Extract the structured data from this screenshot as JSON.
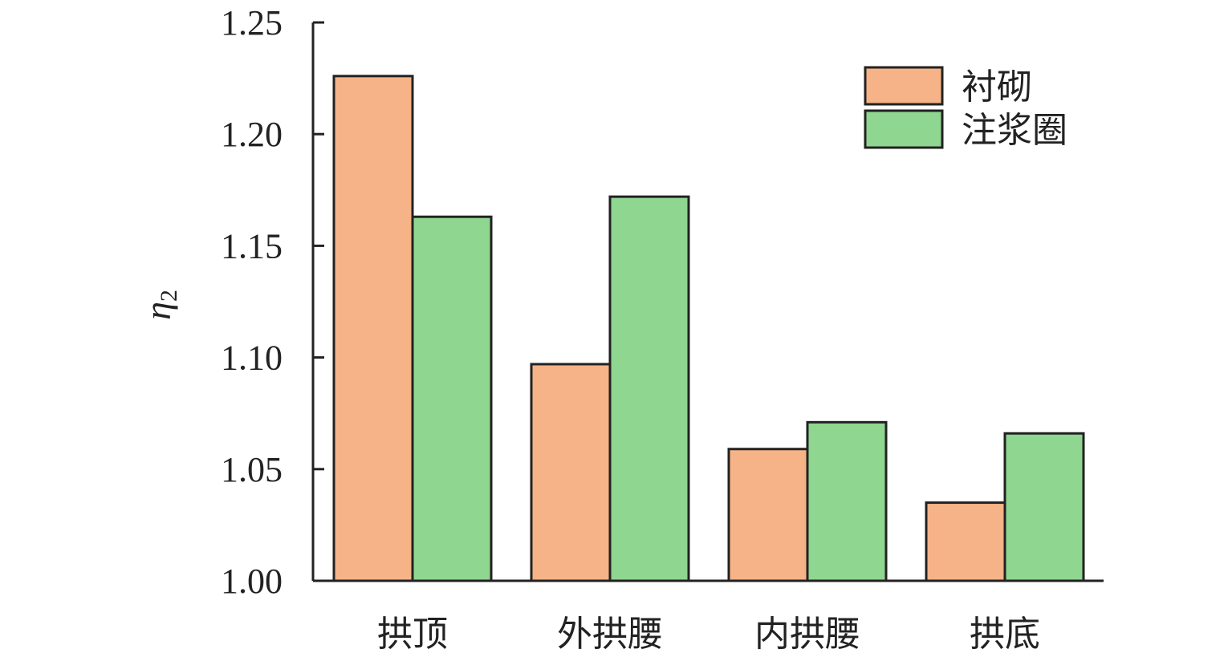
{
  "chart_data": {
    "type": "bar",
    "ylabel": "η",
    "ylabel_subscript": "2",
    "ylim": [
      1.0,
      1.25
    ],
    "yticks": [
      "1.00",
      "1.05",
      "1.10",
      "1.15",
      "1.20",
      "1.25"
    ],
    "categories": [
      "拱顶",
      "外拱腰",
      "内拱腰",
      "拱底"
    ],
    "series": [
      {
        "name": "衬砌",
        "color": "#f5b387",
        "values": [
          1.226,
          1.097,
          1.059,
          1.035
        ]
      },
      {
        "name": "注浆圈",
        "color": "#8fd690",
        "values": [
          1.163,
          1.172,
          1.071,
          1.066
        ]
      }
    ],
    "legend": {
      "placement": "top-right"
    },
    "grid": false
  }
}
